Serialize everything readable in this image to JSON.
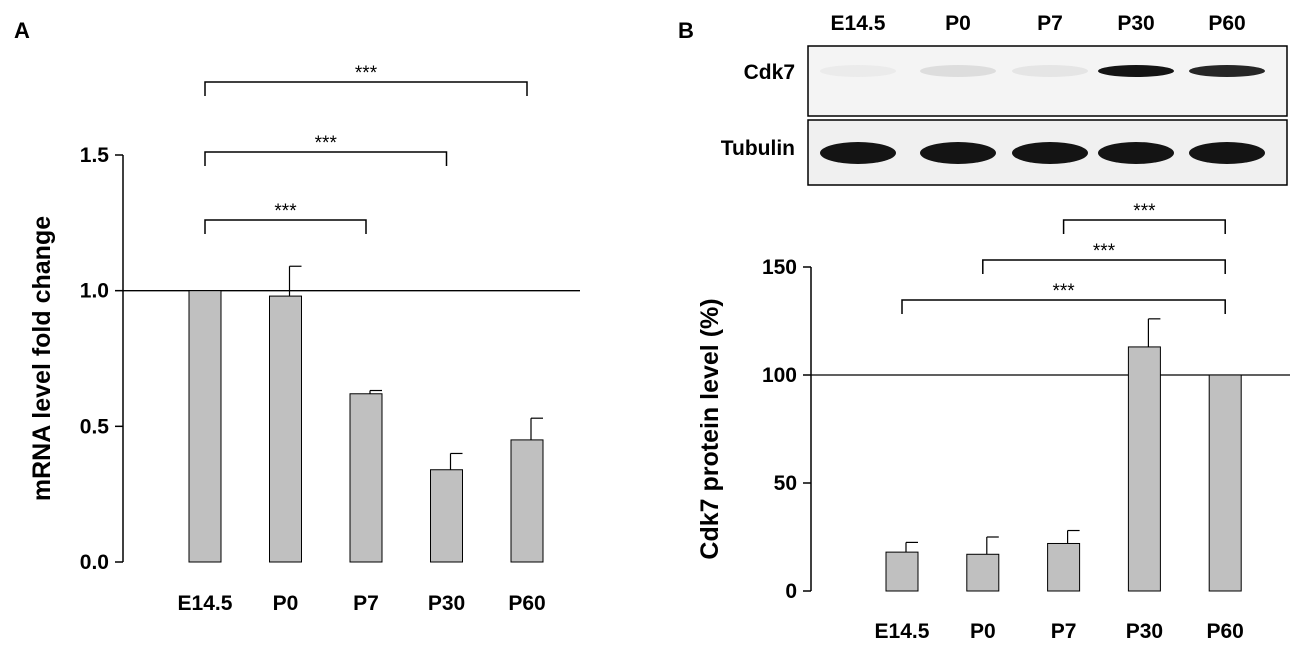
{
  "panels": {
    "a_letter": "A",
    "b_letter": "B"
  },
  "blot": {
    "lanes": [
      "E14.5",
      "P0",
      "P7",
      "P30",
      "P60"
    ],
    "rows": [
      {
        "label": "Cdk7",
        "band_intensity": [
          0.06,
          0.18,
          0.12,
          1.0,
          0.95
        ]
      },
      {
        "label": "Tubulin",
        "band_intensity": [
          1.0,
          1.0,
          1.0,
          1.0,
          1.0
        ]
      }
    ]
  },
  "colors": {
    "bar_fill": "#c0c0c0",
    "bar_stroke": "#000000",
    "axis": "#000000"
  },
  "chart_data": [
    {
      "type": "bar",
      "panel": "A",
      "categories": [
        "E14.5",
        "P0",
        "P7",
        "P30",
        "P60"
      ],
      "values": [
        1.0,
        0.98,
        0.62,
        0.34,
        0.45
      ],
      "errors": [
        0.0,
        0.11,
        0.012,
        0.06,
        0.08
      ],
      "ylabel": "mRNA level fold change",
      "xlabel": "",
      "ylim": [
        0.0,
        1.5
      ],
      "yticks": [
        0.0,
        0.5,
        1.0,
        1.5
      ],
      "ytick_labels": [
        "0.0",
        "0.5",
        "1.0",
        "1.5"
      ],
      "reference_line": 1.0,
      "significance": [
        {
          "from": "E14.5",
          "to": "P7",
          "label": "***"
        },
        {
          "from": "E14.5",
          "to": "P30",
          "label": "***"
        },
        {
          "from": "E14.5",
          "to": "P60",
          "label": "***"
        }
      ]
    },
    {
      "type": "bar",
      "panel": "B",
      "categories": [
        "E14.5",
        "P0",
        "P7",
        "P30",
        "P60"
      ],
      "values": [
        18,
        17,
        22,
        113,
        100
      ],
      "errors": [
        4.5,
        8,
        6,
        13,
        0
      ],
      "ylabel": "Cdk7 protein level (%)",
      "xlabel": "",
      "ylim": [
        0,
        150
      ],
      "yticks": [
        0,
        50,
        100,
        150
      ],
      "ytick_labels": [
        "0",
        "50",
        "100",
        "150"
      ],
      "reference_line": 100,
      "significance": [
        {
          "from": "E14.5",
          "to": "P60",
          "label": "***"
        },
        {
          "from": "P0",
          "to": "P60",
          "label": "***"
        },
        {
          "from": "P7",
          "to": "P60",
          "label": "***"
        }
      ]
    }
  ]
}
